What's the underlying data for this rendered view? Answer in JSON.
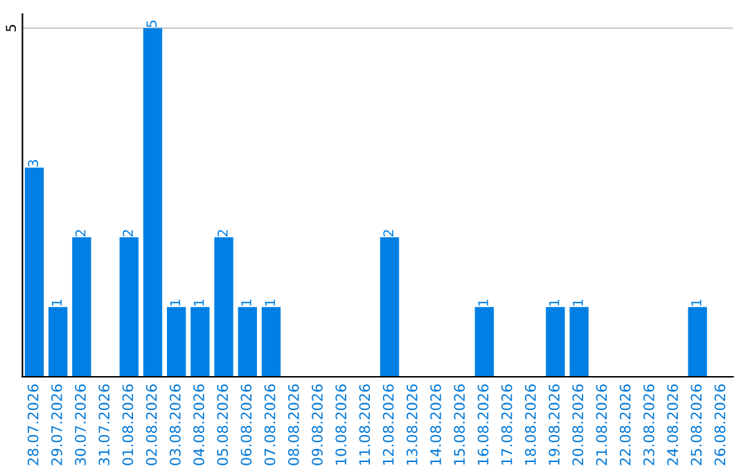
{
  "chart_data": {
    "type": "bar",
    "categories": [
      "28.07.2026",
      "29.07.2026",
      "30.07.2026",
      "31.07.2026",
      "01.08.2026",
      "02.08.2026",
      "03.08.2026",
      "04.08.2026",
      "05.08.2026",
      "06.08.2026",
      "07.08.2026",
      "08.08.2026",
      "09.08.2026",
      "10.08.2026",
      "11.08.2026",
      "12.08.2026",
      "13.08.2026",
      "14.08.2026",
      "15.08.2026",
      "16.08.2026",
      "17.08.2026",
      "18.08.2026",
      "19.08.2026",
      "20.08.2026",
      "21.08.2026",
      "22.08.2026",
      "23.08.2026",
      "24.08.2026",
      "25.08.2026",
      "26.08.2026"
    ],
    "values": [
      3,
      1,
      2,
      0,
      2,
      5,
      1,
      1,
      2,
      1,
      1,
      0,
      0,
      0,
      0,
      2,
      0,
      0,
      0,
      1,
      0,
      0,
      1,
      1,
      0,
      0,
      0,
      0,
      1,
      0
    ],
    "value_labels": [
      "3",
      "1",
      "2",
      null,
      "2",
      "5",
      "1",
      "1",
      "2",
      "1",
      "1",
      null,
      null,
      null,
      null,
      "2",
      null,
      null,
      null,
      "1",
      null,
      null,
      "1",
      "1",
      null,
      null,
      null,
      null,
      "1",
      null
    ],
    "color": "#0080e4",
    "ylim": [
      0,
      5.2
    ],
    "yticks": [
      5
    ],
    "grid": "y"
  }
}
